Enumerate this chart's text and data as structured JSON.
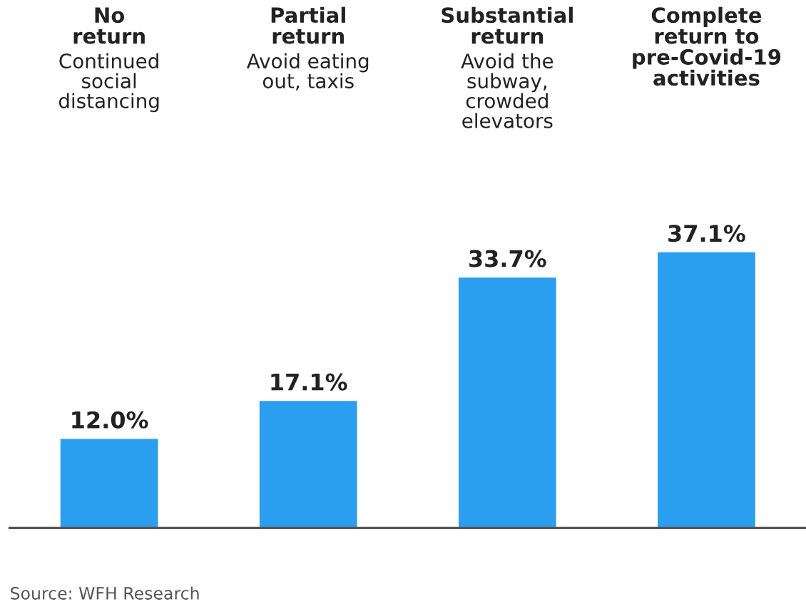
{
  "chart_data": {
    "type": "bar",
    "categories": [
      "No\nreturn",
      "Partial\nreturn",
      "Substantial\nreturn",
      "Complete\nreturn to\npre-Covid-19\nactivities"
    ],
    "values": [
      12.0,
      17.1,
      33.7,
      37.1
    ],
    "value_labels": [
      "12.0%",
      "17.1%",
      "33.7%",
      "37.1%"
    ],
    "color": "#2b9ef0",
    "annotations": [
      "Continued\nsocial\ndistancing",
      "Avoid eating\nout, taxis",
      "Avoid the\nsubway,\ncrowded\nelevators",
      "Source: WFH Research"
    ]
  }
}
